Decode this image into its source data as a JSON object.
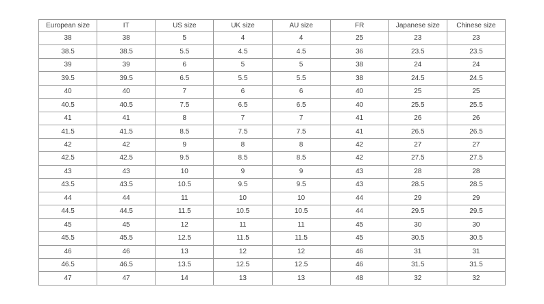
{
  "table": {
    "name": "shoe-size-conversion",
    "border_color": "#999999",
    "text_color": "#3d3d3d",
    "background_color": "#ffffff",
    "headers": [
      "European size",
      "IT",
      "US size",
      "UK size",
      "AU size",
      "FR",
      "Japanese size",
      "Chinese size"
    ],
    "rows": [
      [
        "38",
        "38",
        "5",
        "4",
        "4",
        "25",
        "23",
        "23"
      ],
      [
        "38.5",
        "38.5",
        "5.5",
        "4.5",
        "4.5",
        "36",
        "23.5",
        "23.5"
      ],
      [
        "39",
        "39",
        "6",
        "5",
        "5",
        "38",
        "24",
        "24"
      ],
      [
        "39.5",
        "39.5",
        "6.5",
        "5.5",
        "5.5",
        "38",
        "24.5",
        "24.5"
      ],
      [
        "40",
        "40",
        "7",
        "6",
        "6",
        "40",
        "25",
        "25"
      ],
      [
        "40.5",
        "40.5",
        "7.5",
        "6.5",
        "6.5",
        "40",
        "25.5",
        "25.5"
      ],
      [
        "41",
        "41",
        "8",
        "7",
        "7",
        "41",
        "26",
        "26"
      ],
      [
        "41.5",
        "41.5",
        "8.5",
        "7.5",
        "7.5",
        "41",
        "26.5",
        "26.5"
      ],
      [
        "42",
        "42",
        "9",
        "8",
        "8",
        "42",
        "27",
        "27"
      ],
      [
        "42.5",
        "42.5",
        "9.5",
        "8.5",
        "8.5",
        "42",
        "27.5",
        "27.5"
      ],
      [
        "43",
        "43",
        "10",
        "9",
        "9",
        "43",
        "28",
        "28"
      ],
      [
        "43.5",
        "43.5",
        "10.5",
        "9.5",
        "9.5",
        "43",
        "28.5",
        "28.5"
      ],
      [
        "44",
        "44",
        "11",
        "10",
        "10",
        "44",
        "29",
        "29"
      ],
      [
        "44.5",
        "44.5",
        "11.5",
        "10.5",
        "10.5",
        "44",
        "29.5",
        "29.5"
      ],
      [
        "45",
        "45",
        "12",
        "11",
        "11",
        "45",
        "30",
        "30"
      ],
      [
        "45.5",
        "45.5",
        "12.5",
        "11.5",
        "11.5",
        "45",
        "30.5",
        "30.5"
      ],
      [
        "46",
        "46",
        "13",
        "12",
        "12",
        "46",
        "31",
        "31"
      ],
      [
        "46.5",
        "46.5",
        "13.5",
        "12.5",
        "12.5",
        "46",
        "31.5",
        "31.5"
      ],
      [
        "47",
        "47",
        "14",
        "13",
        "13",
        "48",
        "32",
        "32"
      ]
    ]
  }
}
